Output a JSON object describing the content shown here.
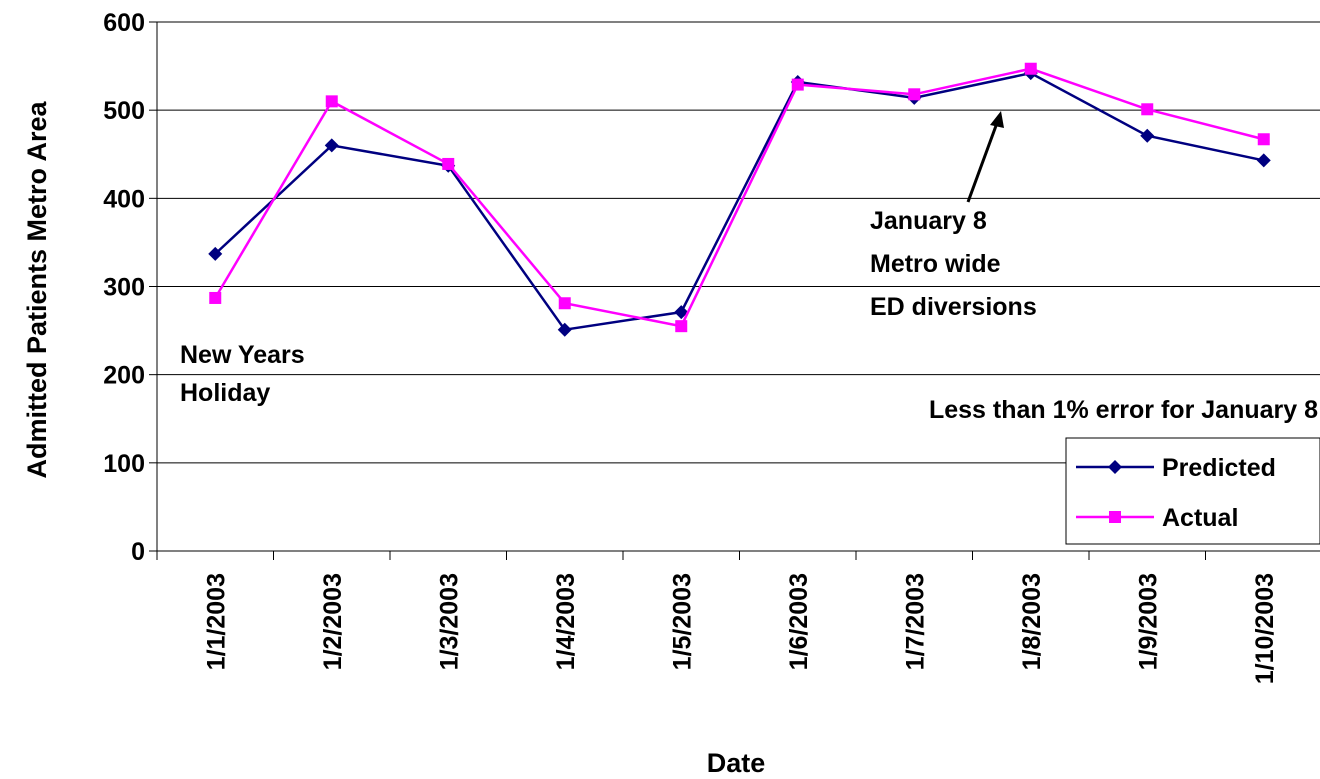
{
  "chart_data": {
    "type": "line",
    "title": "",
    "xlabel": "Date",
    "ylabel": "Admitted Patients  Metro Area",
    "ylim": [
      0,
      600
    ],
    "yticks": [
      0,
      100,
      200,
      300,
      400,
      500,
      600
    ],
    "grid": true,
    "legend_position": "bottom-right",
    "categories": [
      "1/1/2003",
      "1/2/2003",
      "1/3/2003",
      "1/4/2003",
      "1/5/2003",
      "1/6/2003",
      "1/7/2003",
      "1/8/2003",
      "1/9/2003",
      "1/10/2003"
    ],
    "series": [
      {
        "name": "Predicted",
        "color": "#000080",
        "marker": "diamond",
        "values": [
          337,
          460,
          437,
          251,
          271,
          532,
          514,
          542,
          471,
          443
        ]
      },
      {
        "name": "Actual",
        "color": "#ff00ff",
        "marker": "square",
        "values": [
          287,
          510,
          439,
          281,
          255,
          529,
          518,
          547,
          501,
          467
        ]
      }
    ],
    "annotations": {
      "holiday": [
        "New Years",
        "Holiday"
      ],
      "diversion": [
        "January 8",
        "Metro wide",
        "ED diversions"
      ],
      "error_note": "Less than 1% error for January 8"
    }
  }
}
